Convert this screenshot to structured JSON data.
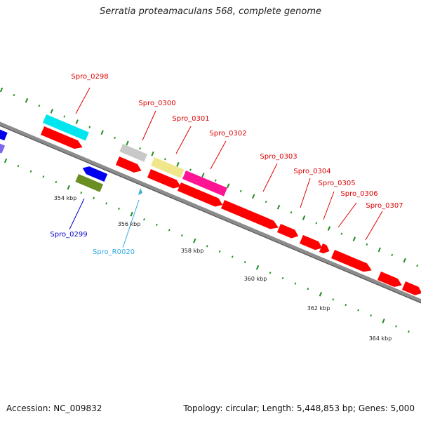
{
  "title": "Serratia proteamaculans 568, complete genome",
  "footer": {
    "accession": "Accession: NC_009832",
    "stats": "Topology: circular; Length: 5,448,853 bp; Genes: 5,000"
  },
  "colors": {
    "backbone": "#8c8c8c",
    "dots": "#1e8c1e",
    "cds": "#ff0000",
    "label_red": "#dd0000",
    "label_blue": "#0000cc",
    "label_cyan": "#33aadd"
  },
  "ruler": [
    {
      "label": "354 kbp"
    },
    {
      "label": "356 kbp"
    },
    {
      "label": "358 kbp"
    },
    {
      "label": "360 kbp"
    },
    {
      "label": "362 kbp"
    },
    {
      "label": "364 kbp"
    }
  ],
  "gene_labels": [
    {
      "text": "Spro_0298",
      "color": "#dd0000"
    },
    {
      "text": "Spro_0300",
      "color": "#dd0000"
    },
    {
      "text": "Spro_0301",
      "color": "#dd0000"
    },
    {
      "text": "Spro_0302",
      "color": "#dd0000"
    },
    {
      "text": "Spro_0303",
      "color": "#dd0000"
    },
    {
      "text": "Spro_0304",
      "color": "#dd0000"
    },
    {
      "text": "Spro_0305",
      "color": "#dd0000"
    },
    {
      "text": "Spro_0306",
      "color": "#dd0000"
    },
    {
      "text": "Spro_0307",
      "color": "#dd0000"
    },
    {
      "text": "Spro_0299",
      "color": "#0000cc"
    },
    {
      "text": "Spro_R0020",
      "color": "#33aadd"
    }
  ]
}
